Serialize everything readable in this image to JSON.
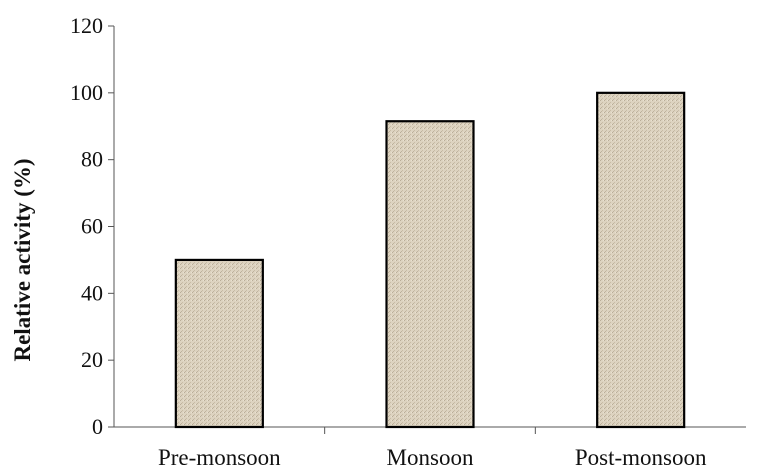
{
  "chart_data": {
    "type": "bar",
    "categories": [
      "Pre-monsoon",
      "Monsoon",
      "Post-monsoon"
    ],
    "values": [
      50,
      91.5,
      100
    ],
    "title": "",
    "xlabel": "",
    "ylabel": "Relative activity (%)",
    "ylim": [
      0,
      120
    ],
    "yticks": [
      "0",
      "20",
      "40",
      "60",
      "80",
      "100",
      "120"
    ],
    "grid": false,
    "legend": "none",
    "colors": {
      "bar_fill": "#ddd3c0",
      "bar_stroke": "#000000",
      "axis": "#555555"
    }
  }
}
